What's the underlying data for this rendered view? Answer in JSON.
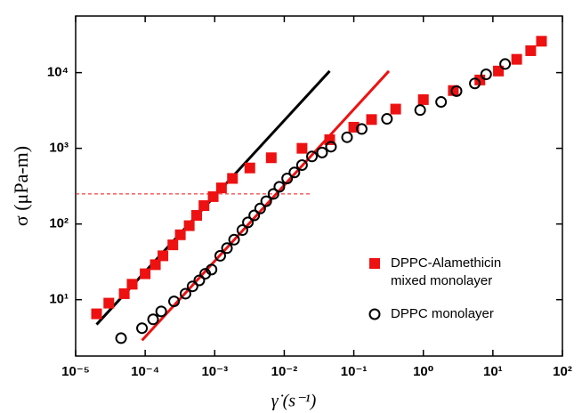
{
  "chart_data": {
    "type": "scatter",
    "x_label": "γ̇ (s⁻¹)",
    "y_label": "σ (μPa-m)",
    "log_x": true,
    "log_y": true,
    "xlim": [
      1e-05,
      100
    ],
    "ylim": [
      1.8,
      56000
    ],
    "xticks": [
      {
        "value": 1e-05,
        "label": "10⁻⁵"
      },
      {
        "value": 0.0001,
        "label": "10⁻⁴"
      },
      {
        "value": 0.001,
        "label": "10⁻³"
      },
      {
        "value": 0.01,
        "label": "10⁻²"
      },
      {
        "value": 0.1,
        "label": "10⁻¹"
      },
      {
        "value": 1,
        "label": "10⁰"
      },
      {
        "value": 10,
        "label": "10¹"
      },
      {
        "value": 100,
        "label": "10²"
      }
    ],
    "yticks": [
      {
        "value": 10,
        "label": "10¹"
      },
      {
        "value": 100,
        "label": "10²"
      },
      {
        "value": 1000,
        "label": "10³"
      },
      {
        "value": 10000,
        "label": "10⁴"
      }
    ],
    "legend": "lower right",
    "series": [
      {
        "name": "DPPC-Alamethicin mixed monolayer",
        "color": "#ee1111",
        "marker": "square",
        "x": [
          2e-05,
          3e-05,
          5e-05,
          6.5e-05,
          0.0001,
          0.00014,
          0.00018,
          0.00025,
          0.00032,
          0.00043,
          0.00055,
          0.0007,
          0.00095,
          0.00125,
          0.0018,
          0.0032,
          0.0065,
          0.018,
          0.045,
          0.1,
          0.18,
          0.4,
          1,
          2.7,
          6.5,
          12,
          22,
          35,
          50
        ],
        "values": [
          6.5,
          9,
          12,
          16,
          22,
          29,
          38,
          53,
          72,
          95,
          130,
          175,
          230,
          300,
          400,
          550,
          750,
          1000,
          1300,
          1900,
          2400,
          3300,
          4400,
          5800,
          8000,
          10500,
          15000,
          19500,
          26000
        ]
      },
      {
        "name": "DPPC monolayer",
        "color": "#000000",
        "marker": "circle",
        "x": [
          4.5e-05,
          9e-05,
          0.00013,
          0.00017,
          0.00026,
          0.00038,
          0.00048,
          0.0006,
          0.00073,
          0.0009,
          0.0012,
          0.0015,
          0.0019,
          0.0025,
          0.003,
          0.0037,
          0.0045,
          0.0055,
          0.007,
          0.0085,
          0.011,
          0.014,
          0.018,
          0.025,
          0.035,
          0.047,
          0.08,
          0.13,
          0.3,
          0.9,
          1.8,
          3,
          5.5,
          8,
          15
        ],
        "values": [
          3.1,
          4.2,
          5.5,
          7,
          9.5,
          12,
          15,
          18,
          22,
          25,
          38,
          48,
          62,
          83,
          105,
          130,
          160,
          200,
          250,
          310,
          400,
          480,
          600,
          780,
          880,
          1050,
          1400,
          1800,
          2450,
          3200,
          4100,
          5700,
          7200,
          9500,
          13000
        ]
      }
    ],
    "lines": [
      {
        "color": "#000000",
        "x": [
          2e-05,
          0.045
        ],
        "values": [
          4.7,
          10500
        ]
      },
      {
        "color": "#ee1111",
        "x": [
          9e-05,
          0.32
        ],
        "values": [
          2.9,
          10500
        ]
      }
    ],
    "hline": {
      "color": "#ee1111",
      "dashed": true,
      "value": 250,
      "x": [
        1e-05,
        0.025
      ]
    }
  }
}
